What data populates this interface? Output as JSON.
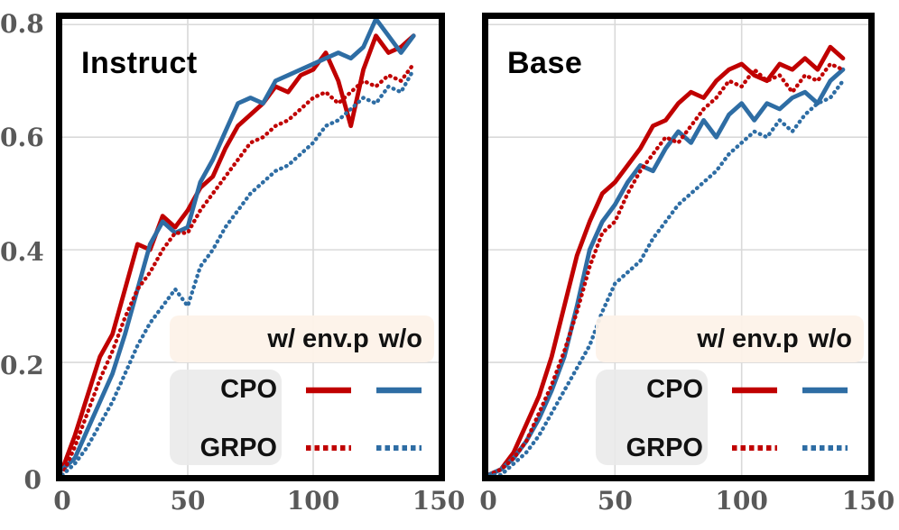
{
  "colors": {
    "red": "#c00000",
    "blue": "#2e6da4",
    "grid": "#d9d9d9",
    "axis_border": "#000000",
    "tick_text": "#595959",
    "legend_header_bg": "#fdf2e8",
    "legend_label_bg": "#e9e9e9"
  },
  "y_axis": {
    "ticks": [
      {
        "label": "0",
        "value": 0
      },
      {
        "label": "0.2",
        "value": 0.2
      },
      {
        "label": "0.4",
        "value": 0.4
      },
      {
        "label": "0.6",
        "value": 0.6
      },
      {
        "label": "0.8",
        "value": 0.8
      }
    ]
  },
  "x_axis": {
    "ticks": [
      {
        "label": "0",
        "value": 0
      },
      {
        "label": "50",
        "value": 50
      },
      {
        "label": "100",
        "value": 100
      },
      {
        "label": "150",
        "value": 150
      }
    ]
  },
  "legend": {
    "header_col1": "w/ env.p",
    "header_col2": "w/o",
    "rows": [
      {
        "label": "CPO",
        "dash": "solid"
      },
      {
        "label": "GRPO",
        "dash": "dotted"
      }
    ],
    "columns": [
      {
        "key": "w/ env.p",
        "color": "red"
      },
      {
        "key": "w/o",
        "color": "blue"
      }
    ]
  },
  "chart_data": [
    {
      "type": "line",
      "title": "Instruct",
      "xlim": [
        0,
        150
      ],
      "ylim": [
        0,
        0.81
      ],
      "x_grid": [
        50,
        100
      ],
      "y_grid": [
        0.2,
        0.4,
        0.6,
        0.8
      ],
      "x": [
        0,
        5,
        10,
        15,
        20,
        25,
        30,
        35,
        40,
        45,
        50,
        55,
        60,
        65,
        70,
        75,
        80,
        85,
        90,
        95,
        100,
        105,
        110,
        115,
        120,
        125,
        130,
        135,
        140
      ],
      "series": [
        {
          "name": "CPO w/ env.p",
          "color": "#c00000",
          "style": "solid",
          "values": [
            0.01,
            0.07,
            0.14,
            0.21,
            0.25,
            0.33,
            0.41,
            0.4,
            0.46,
            0.44,
            0.47,
            0.51,
            0.53,
            0.58,
            0.62,
            0.64,
            0.66,
            0.69,
            0.68,
            0.71,
            0.72,
            0.75,
            0.7,
            0.62,
            0.72,
            0.78,
            0.75,
            0.76,
            0.78
          ]
        },
        {
          "name": "CPO w/o",
          "color": "#2e6da4",
          "style": "solid",
          "values": [
            0.01,
            0.03,
            0.08,
            0.13,
            0.18,
            0.25,
            0.33,
            0.41,
            0.45,
            0.43,
            0.44,
            0.52,
            0.56,
            0.61,
            0.66,
            0.67,
            0.66,
            0.7,
            0.71,
            0.72,
            0.73,
            0.74,
            0.75,
            0.74,
            0.76,
            0.81,
            0.78,
            0.75,
            0.78
          ]
        },
        {
          "name": "GRPO w/ env.p",
          "color": "#c00000",
          "style": "dotted",
          "values": [
            0.0,
            0.05,
            0.11,
            0.17,
            0.22,
            0.28,
            0.33,
            0.36,
            0.4,
            0.43,
            0.43,
            0.47,
            0.5,
            0.53,
            0.56,
            0.59,
            0.6,
            0.62,
            0.63,
            0.65,
            0.67,
            0.68,
            0.66,
            0.68,
            0.7,
            0.69,
            0.71,
            0.7,
            0.73
          ]
        },
        {
          "name": "GRPO w/o",
          "color": "#2e6da4",
          "style": "dotted",
          "values": [
            0.0,
            0.02,
            0.05,
            0.09,
            0.13,
            0.18,
            0.23,
            0.27,
            0.3,
            0.33,
            0.3,
            0.37,
            0.4,
            0.44,
            0.47,
            0.5,
            0.52,
            0.54,
            0.55,
            0.57,
            0.59,
            0.62,
            0.63,
            0.65,
            0.67,
            0.66,
            0.69,
            0.68,
            0.72
          ]
        }
      ]
    },
    {
      "type": "line",
      "title": "Base",
      "xlim": [
        0,
        150
      ],
      "ylim": [
        0,
        0.81
      ],
      "x_grid": [
        50,
        100
      ],
      "y_grid": [
        0.2,
        0.4,
        0.6,
        0.8
      ],
      "x": [
        0,
        5,
        10,
        15,
        20,
        25,
        30,
        35,
        40,
        45,
        50,
        55,
        60,
        65,
        70,
        75,
        80,
        85,
        90,
        95,
        100,
        105,
        110,
        115,
        120,
        125,
        130,
        135,
        140
      ],
      "series": [
        {
          "name": "CPO w/ env.p",
          "color": "#c00000",
          "style": "solid",
          "values": [
            0.0,
            0.01,
            0.04,
            0.09,
            0.14,
            0.21,
            0.3,
            0.39,
            0.45,
            0.5,
            0.52,
            0.55,
            0.58,
            0.62,
            0.63,
            0.66,
            0.68,
            0.67,
            0.7,
            0.72,
            0.73,
            0.71,
            0.7,
            0.73,
            0.72,
            0.74,
            0.72,
            0.76,
            0.74
          ]
        },
        {
          "name": "CPO w/o",
          "color": "#2e6da4",
          "style": "solid",
          "values": [
            0.0,
            0.01,
            0.03,
            0.06,
            0.1,
            0.15,
            0.21,
            0.3,
            0.4,
            0.45,
            0.48,
            0.52,
            0.55,
            0.54,
            0.58,
            0.61,
            0.59,
            0.63,
            0.6,
            0.64,
            0.66,
            0.63,
            0.66,
            0.65,
            0.67,
            0.68,
            0.66,
            0.7,
            0.72
          ]
        },
        {
          "name": "GRPO w/ env.p",
          "color": "#c00000",
          "style": "dotted",
          "values": [
            0.0,
            0.01,
            0.03,
            0.06,
            0.11,
            0.16,
            0.22,
            0.29,
            0.37,
            0.43,
            0.45,
            0.5,
            0.54,
            0.57,
            0.6,
            0.59,
            0.62,
            0.65,
            0.67,
            0.7,
            0.69,
            0.72,
            0.7,
            0.71,
            0.68,
            0.71,
            0.7,
            0.73,
            0.72
          ]
        },
        {
          "name": "GRPO w/o",
          "color": "#2e6da4",
          "style": "dotted",
          "values": [
            0.0,
            0.0,
            0.02,
            0.04,
            0.07,
            0.11,
            0.15,
            0.19,
            0.23,
            0.29,
            0.34,
            0.36,
            0.38,
            0.42,
            0.45,
            0.48,
            0.5,
            0.52,
            0.54,
            0.57,
            0.59,
            0.61,
            0.6,
            0.63,
            0.61,
            0.64,
            0.66,
            0.67,
            0.7
          ]
        }
      ]
    }
  ]
}
